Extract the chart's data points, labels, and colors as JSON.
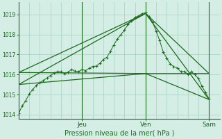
{
  "title": "",
  "xlabel": "Pression niveau de la mer( hPa )",
  "bg_color": "#d4ede5",
  "grid_color": "#a8cfc0",
  "line_color": "#1a6b1a",
  "ylim": [
    1013.8,
    1019.6
  ],
  "xlim": [
    0,
    114
  ],
  "yticks": [
    1014,
    1015,
    1016,
    1017,
    1018,
    1019
  ],
  "day_ticks": [
    36,
    72,
    108
  ],
  "day_labels": [
    "Jeu",
    "Ven",
    "Sam"
  ],
  "smooth_lines": [
    {
      "x": [
        0,
        72,
        108
      ],
      "y": [
        1016.1,
        1019.05,
        1016.05
      ]
    },
    {
      "x": [
        0,
        72,
        108
      ],
      "y": [
        1016.1,
        1016.05,
        1016.05
      ]
    },
    {
      "x": [
        0,
        72,
        108
      ],
      "y": [
        1015.5,
        1019.05,
        1014.75
      ]
    },
    {
      "x": [
        0,
        72,
        108
      ],
      "y": [
        1015.5,
        1016.05,
        1014.75
      ]
    }
  ],
  "noisy_x": [
    0,
    2,
    4,
    6,
    8,
    10,
    12,
    14,
    16,
    18,
    20,
    22,
    24,
    26,
    28,
    30,
    32,
    34,
    36,
    38,
    40,
    42,
    44,
    46,
    48,
    50,
    52,
    54,
    56,
    58,
    60,
    62,
    64,
    66,
    68,
    70,
    72,
    74,
    76,
    78,
    80,
    82,
    84,
    86,
    88,
    90,
    92,
    94,
    96,
    98,
    100,
    102,
    104,
    106,
    108
  ],
  "noisy_y": [
    1014.1,
    1014.4,
    1014.7,
    1015.0,
    1015.2,
    1015.45,
    1015.6,
    1015.75,
    1015.85,
    1015.95,
    1016.05,
    1016.1,
    1016.15,
    1016.1,
    1016.15,
    1016.2,
    1016.2,
    1016.15,
    1016.2,
    1016.25,
    1016.3,
    1016.35,
    1016.45,
    1016.55,
    1016.7,
    1016.9,
    1017.15,
    1017.45,
    1017.75,
    1018.0,
    1018.25,
    1018.5,
    1018.7,
    1018.85,
    1018.95,
    1019.0,
    1019.05,
    1018.9,
    1018.6,
    1018.2,
    1017.7,
    1017.15,
    1016.8,
    1016.55,
    1016.4,
    1016.3,
    1016.15,
    1016.1,
    1016.05,
    1016.1,
    1016.0,
    1015.8,
    1015.4,
    1015.1,
    1014.8
  ]
}
